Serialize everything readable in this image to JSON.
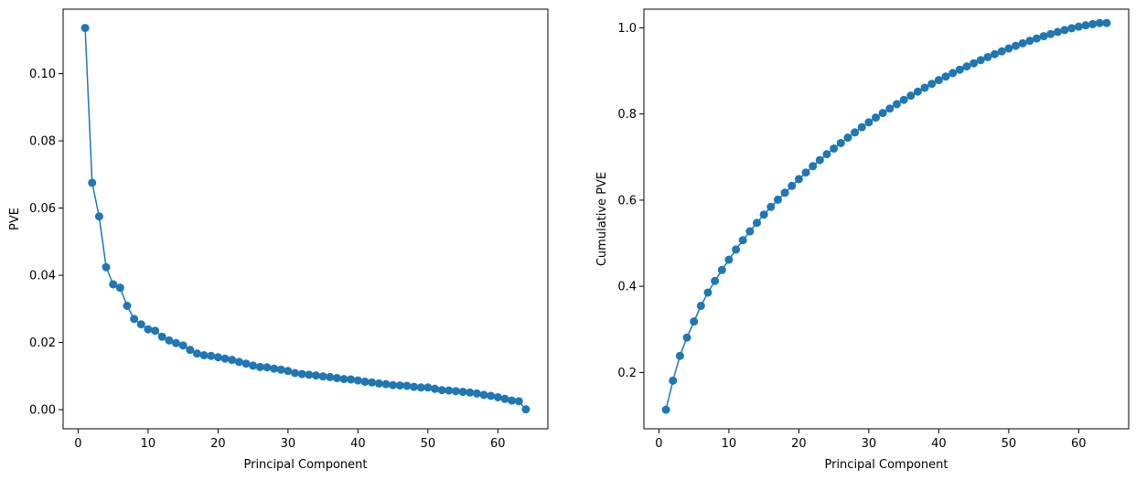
{
  "chart_data": [
    {
      "type": "line",
      "markers": "circle",
      "color": "#1f77b4",
      "xlabel": "Principal Component",
      "ylabel": "PVE",
      "xlim": [
        -2.15,
        67.15
      ],
      "ylim": [
        -0.0057,
        0.1192
      ],
      "xticks": [
        0,
        10,
        20,
        30,
        40,
        50,
        60
      ],
      "yticks": [
        0.0,
        0.02,
        0.04,
        0.06,
        0.08,
        0.1
      ],
      "ytick_labels": [
        "0.00",
        "0.02",
        "0.04",
        "0.06",
        "0.08",
        "0.10"
      ],
      "grid": false,
      "x": [
        1,
        2,
        3,
        4,
        5,
        6,
        7,
        8,
        9,
        10,
        11,
        12,
        13,
        14,
        15,
        16,
        17,
        18,
        19,
        20,
        21,
        22,
        23,
        24,
        25,
        26,
        27,
        28,
        29,
        30,
        31,
        32,
        33,
        34,
        35,
        36,
        37,
        38,
        39,
        40,
        41,
        42,
        43,
        44,
        45,
        46,
        47,
        48,
        49,
        50,
        51,
        52,
        53,
        54,
        55,
        56,
        57,
        58,
        59,
        60,
        61,
        62,
        63,
        64
      ],
      "y": [
        0.1136,
        0.0675,
        0.0575,
        0.0424,
        0.0373,
        0.0363,
        0.0309,
        0.027,
        0.0254,
        0.0239,
        0.0235,
        0.0217,
        0.0206,
        0.0198,
        0.0191,
        0.0178,
        0.0167,
        0.0162,
        0.016,
        0.0156,
        0.0152,
        0.0148,
        0.0142,
        0.0137,
        0.0131,
        0.0127,
        0.0126,
        0.0122,
        0.0119,
        0.0115,
        0.0109,
        0.0106,
        0.0104,
        0.0102,
        0.0099,
        0.0097,
        0.0094,
        0.0091,
        0.009,
        0.0087,
        0.0083,
        0.0081,
        0.0078,
        0.0076,
        0.0073,
        0.0072,
        0.0071,
        0.0068,
        0.0066,
        0.0066,
        0.0062,
        0.0058,
        0.0057,
        0.0055,
        0.0053,
        0.0051,
        0.0048,
        0.0044,
        0.0041,
        0.0037,
        0.0032,
        0.0027,
        0.0025,
        0.0001
      ]
    },
    {
      "type": "line",
      "markers": "circle",
      "color": "#1f77b4",
      "xlabel": "Principal Component",
      "ylabel": "Cumulative PVE",
      "xlim": [
        -2.15,
        67.15
      ],
      "ylim": [
        0.0693,
        1.0433
      ],
      "xticks": [
        0,
        10,
        20,
        30,
        40,
        50,
        60
      ],
      "yticks": [
        0.2,
        0.4,
        0.6,
        0.8,
        1.0
      ],
      "ytick_labels": [
        "0.2",
        "0.4",
        "0.6",
        "0.8",
        "1.0"
      ],
      "grid": false,
      "x": [
        1,
        2,
        3,
        4,
        5,
        6,
        7,
        8,
        9,
        10,
        11,
        12,
        13,
        14,
        15,
        16,
        17,
        18,
        19,
        20,
        21,
        22,
        23,
        24,
        25,
        26,
        27,
        28,
        29,
        30,
        31,
        32,
        33,
        34,
        35,
        36,
        37,
        38,
        39,
        40,
        41,
        42,
        43,
        44,
        45,
        46,
        47,
        48,
        49,
        50,
        51,
        52,
        53,
        54,
        55,
        56,
        57,
        58,
        59,
        60,
        61,
        62,
        63,
        64
      ],
      "y": [
        0.1136,
        0.1811,
        0.2386,
        0.281,
        0.3183,
        0.3546,
        0.3855,
        0.4125,
        0.4379,
        0.4618,
        0.4853,
        0.507,
        0.5276,
        0.5474,
        0.5665,
        0.5843,
        0.601,
        0.6172,
        0.6332,
        0.6488,
        0.664,
        0.6788,
        0.693,
        0.7067,
        0.7198,
        0.7325,
        0.7451,
        0.7573,
        0.7692,
        0.7807,
        0.7916,
        0.8022,
        0.8126,
        0.8228,
        0.8327,
        0.8424,
        0.8518,
        0.8609,
        0.8699,
        0.8786,
        0.8869,
        0.895,
        0.9028,
        0.9104,
        0.9177,
        0.9249,
        0.932,
        0.9388,
        0.9454,
        0.952,
        0.9582,
        0.964,
        0.9697,
        0.9752,
        0.9805,
        0.9856,
        0.9904,
        0.9948,
        0.9989,
        1.0026,
        1.0058,
        1.0085,
        1.011,
        1.0111
      ]
    }
  ]
}
